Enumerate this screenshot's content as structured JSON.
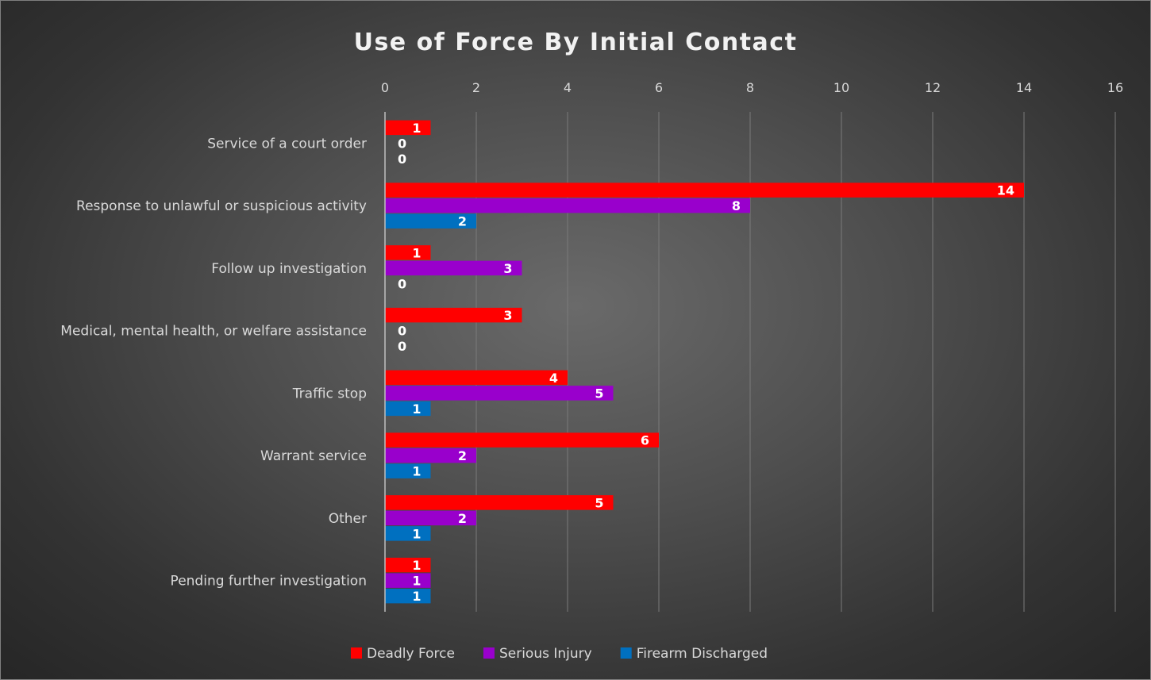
{
  "chart_data": {
    "type": "bar",
    "orientation": "horizontal",
    "title": "Use of Force By Initial Contact",
    "categories": [
      "Service of a court order",
      "Response to unlawful or suspicious activity",
      "Follow up investigation",
      "Medical, mental health, or welfare assistance",
      "Traffic stop",
      "Warrant service",
      "Other",
      "Pending further investigation"
    ],
    "series": [
      {
        "name": "Deadly Force",
        "color": "#ff0000",
        "values": [
          1,
          14,
          1,
          3,
          4,
          6,
          5,
          1
        ]
      },
      {
        "name": "Serious Injury",
        "color": "#9900cc",
        "values": [
          0,
          8,
          3,
          0,
          5,
          2,
          2,
          1
        ]
      },
      {
        "name": "Firearm Discharged",
        "color": "#0070c0",
        "values": [
          0,
          2,
          0,
          0,
          1,
          1,
          1,
          1
        ]
      }
    ],
    "xlim": [
      0,
      16
    ],
    "x_ticks": [
      0,
      2,
      4,
      6,
      8,
      10,
      12,
      14,
      16
    ],
    "x_axis_position": "top",
    "data_labels": true,
    "grid": "vertical",
    "legend": "bottom",
    "xlabel": "",
    "ylabel": ""
  }
}
